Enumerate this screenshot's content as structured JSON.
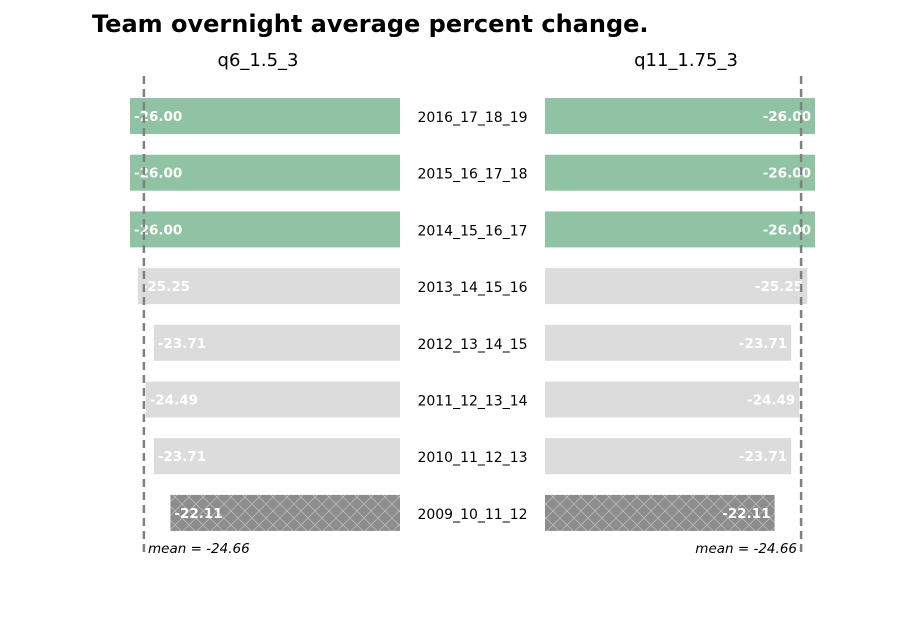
{
  "chart_data": {
    "type": "bar",
    "title": "Team overnight average percent change.",
    "categories": [
      "2016_17_18_19",
      "2015_16_17_18",
      "2014_15_16_17",
      "2013_14_15_16",
      "2012_13_14_15",
      "2011_12_13_14",
      "2010_11_12_13",
      "2009_10_11_12"
    ],
    "series": [
      {
        "name": "q6_1.5_3",
        "values": [
          -26.0,
          -26.0,
          -26.0,
          -25.25,
          -23.71,
          -24.49,
          -23.71,
          -22.11
        ],
        "value_labels": [
          "-26.00",
          "-26.00",
          "-26.00",
          "-25.25",
          "-23.71",
          "-24.49",
          "-23.71",
          "-22.11"
        ],
        "mean": -24.66,
        "mean_label": "mean = -24.66"
      },
      {
        "name": "q11_1.75_3",
        "values": [
          -26.0,
          -26.0,
          -26.0,
          -25.25,
          -23.71,
          -24.49,
          -23.71,
          -22.11
        ],
        "value_labels": [
          "-26.00",
          "-26.00",
          "-26.00",
          "-25.25",
          "-23.71",
          "-24.49",
          "-23.71",
          "-22.11"
        ],
        "mean": -24.66,
        "mean_label": "mean = -24.66"
      }
    ],
    "bar_styles": [
      "highlight",
      "highlight",
      "highlight",
      "normal",
      "normal",
      "normal",
      "normal",
      "hatched"
    ],
    "colors": {
      "highlight": "#8fc3a4",
      "normal": "#dcdcdc",
      "hatched": "#8c8c8c",
      "mean_line": "#808080"
    },
    "orientation": "horizontal",
    "mirrored": true,
    "grid": false
  }
}
